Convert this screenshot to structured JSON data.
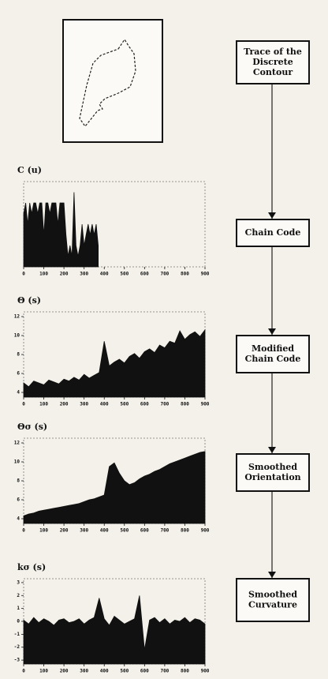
{
  "chart_data": [
    {
      "type": "area",
      "title": "C (u)",
      "xlim": [
        0,
        900
      ],
      "ylim": [
        0,
        8
      ],
      "xticks": [
        0,
        100,
        200,
        300,
        400,
        500,
        600,
        700,
        800,
        900
      ],
      "yticks": [],
      "x": [
        0,
        10,
        20,
        30,
        40,
        50,
        60,
        70,
        80,
        90,
        100,
        110,
        120,
        130,
        140,
        150,
        160,
        170,
        180,
        190,
        200,
        210,
        220,
        230,
        240,
        250,
        260,
        270,
        280,
        290,
        300,
        310,
        320,
        330,
        340,
        350,
        360,
        370
      ],
      "values": [
        5,
        6,
        4,
        6,
        5,
        6,
        6,
        5,
        6,
        6,
        3,
        6,
        6,
        5,
        6,
        6,
        6,
        4,
        6,
        6,
        6,
        3,
        1,
        2,
        1,
        7,
        2,
        1,
        2,
        4,
        2,
        3,
        4,
        3,
        4,
        3,
        4,
        2
      ],
      "color": "#111111"
    },
    {
      "type": "area",
      "title": "Θ (s)",
      "xlim": [
        0,
        900
      ],
      "ylim": [
        3.5,
        12.5
      ],
      "xticks": [
        0,
        100,
        200,
        300,
        400,
        500,
        600,
        700,
        800,
        900
      ],
      "yticks": [
        4,
        6,
        8,
        10,
        12
      ],
      "x": [
        0,
        25,
        50,
        75,
        100,
        125,
        150,
        175,
        200,
        225,
        250,
        275,
        300,
        325,
        350,
        375,
        400,
        425,
        450,
        475,
        500,
        525,
        550,
        575,
        600,
        625,
        650,
        675,
        700,
        725,
        750,
        775,
        800,
        825,
        850,
        875,
        900
      ],
      "values": [
        5,
        4.6,
        5.2,
        5,
        4.8,
        5.3,
        5.1,
        4.9,
        5.4,
        5.2,
        5.6,
        5.3,
        5.9,
        5.5,
        5.8,
        6.1,
        9.4,
        6.8,
        7.2,
        7.5,
        7.1,
        7.8,
        8.1,
        7.6,
        8.3,
        8.6,
        8.2,
        9,
        8.7,
        9.4,
        9.2,
        10.5,
        9.6,
        10.1,
        10.4,
        9.9,
        10.6
      ],
      "color": "#111111"
    },
    {
      "type": "area",
      "title": "Θσ (s)",
      "xlim": [
        0,
        900
      ],
      "ylim": [
        3.5,
        12.5
      ],
      "xticks": [
        0,
        100,
        200,
        300,
        400,
        500,
        600,
        700,
        800,
        900
      ],
      "yticks": [
        4,
        6,
        8,
        10,
        12
      ],
      "x": [
        0,
        25,
        50,
        75,
        100,
        125,
        150,
        175,
        200,
        225,
        250,
        275,
        300,
        325,
        350,
        375,
        400,
        425,
        450,
        475,
        500,
        525,
        550,
        575,
        600,
        625,
        650,
        675,
        700,
        725,
        750,
        775,
        800,
        825,
        850,
        875,
        900
      ],
      "values": [
        4.3,
        4.5,
        4.6,
        4.8,
        4.9,
        5,
        5.1,
        5.2,
        5.3,
        5.4,
        5.5,
        5.6,
        5.8,
        6,
        6.1,
        6.3,
        6.5,
        9.5,
        9.9,
        8.8,
        8,
        7.6,
        7.8,
        8.2,
        8.5,
        8.7,
        9,
        9.2,
        9.5,
        9.8,
        10,
        10.2,
        10.4,
        10.6,
        10.8,
        11,
        11.1
      ],
      "color": "#111111"
    },
    {
      "type": "area",
      "title": "kσ (s)",
      "xlim": [
        0,
        900
      ],
      "ylim": [
        -3.3,
        3.3
      ],
      "xticks": [
        0,
        100,
        200,
        300,
        400,
        500,
        600,
        700,
        800,
        900
      ],
      "yticks": [
        -3,
        -2,
        -1,
        0,
        1,
        2,
        3
      ],
      "x": [
        0,
        25,
        50,
        75,
        100,
        125,
        150,
        175,
        200,
        225,
        250,
        275,
        300,
        325,
        350,
        375,
        400,
        425,
        450,
        475,
        500,
        525,
        550,
        575,
        600,
        625,
        650,
        675,
        700,
        725,
        750,
        775,
        800,
        825,
        850,
        875,
        900
      ],
      "values": [
        0.1,
        -0.2,
        0.3,
        -0.1,
        0.2,
        0,
        -0.3,
        0.1,
        0.2,
        -0.1,
        0,
        0.2,
        -0.2,
        0.1,
        0.3,
        1.8,
        0.2,
        -0.3,
        0.4,
        0.1,
        -0.2,
        0,
        0.2,
        2,
        -2.2,
        0.1,
        0.3,
        -0.1,
        0.2,
        -0.2,
        0.1,
        0,
        0.3,
        -0.1,
        0.2,
        0.1,
        -0.2
      ],
      "color": "#111111"
    }
  ],
  "diagram": {
    "boxes": [
      {
        "lines": [
          "Trace of the",
          "Discrete",
          "Contour"
        ]
      },
      {
        "lines": [
          "Chain Code"
        ]
      },
      {
        "lines": [
          "Modified",
          "Chain Code"
        ]
      },
      {
        "lines": [
          "Smoothed",
          "Orientation"
        ]
      },
      {
        "lines": [
          "Smoothed",
          "Curvature"
        ]
      }
    ]
  }
}
